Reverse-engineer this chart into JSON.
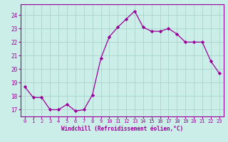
{
  "x": [
    0,
    1,
    2,
    3,
    4,
    5,
    6,
    7,
    8,
    9,
    10,
    11,
    12,
    13,
    14,
    15,
    16,
    17,
    18,
    19,
    20,
    21,
    22,
    23
  ],
  "y": [
    18.7,
    17.9,
    17.9,
    17.0,
    17.0,
    17.4,
    16.9,
    17.0,
    18.1,
    20.8,
    22.4,
    23.1,
    23.7,
    24.3,
    23.1,
    22.8,
    22.8,
    23.0,
    22.6,
    22.0,
    22.0,
    22.0,
    20.6,
    19.7
  ],
  "line_color": "#990099",
  "marker": "D",
  "marker_size": 2.2,
  "bg_color": "#cceee8",
  "grid_color": "#aad4cc",
  "xlabel": "Windchill (Refroidissement éolien,°C)",
  "xlabel_color": "#990099",
  "tick_color": "#990099",
  "ylim": [
    16.5,
    24.8
  ],
  "xlim": [
    -0.5,
    23.5
  ],
  "yticks": [
    17,
    18,
    19,
    20,
    21,
    22,
    23,
    24
  ],
  "xticks": [
    0,
    1,
    2,
    3,
    4,
    5,
    6,
    7,
    8,
    9,
    10,
    11,
    12,
    13,
    14,
    15,
    16,
    17,
    18,
    19,
    20,
    21,
    22,
    23
  ]
}
